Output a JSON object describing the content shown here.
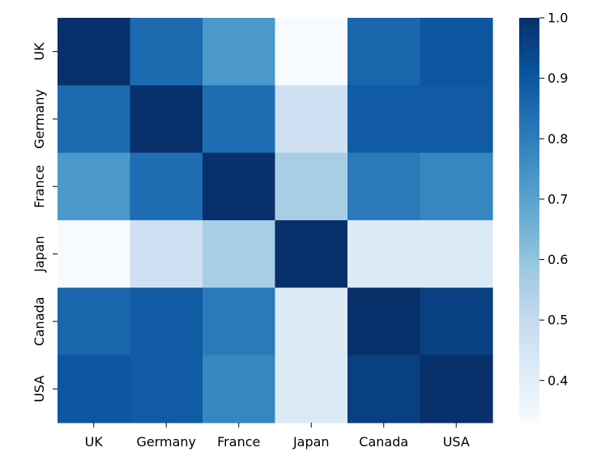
{
  "chart_data": {
    "type": "heatmap",
    "title": "",
    "xlabel": "",
    "ylabel": "",
    "x_categories": [
      "UK",
      "Germany",
      "France",
      "Japan",
      "Canada",
      "USA"
    ],
    "y_categories": [
      "UK",
      "Germany",
      "France",
      "Japan",
      "Canada",
      "USA"
    ],
    "matrix": [
      [
        1.0,
        0.85,
        0.73,
        0.33,
        0.86,
        0.9
      ],
      [
        0.85,
        1.0,
        0.84,
        0.47,
        0.89,
        0.89
      ],
      [
        0.73,
        0.84,
        1.0,
        0.56,
        0.81,
        0.78
      ],
      [
        0.33,
        0.47,
        0.56,
        1.0,
        0.42,
        0.42
      ],
      [
        0.86,
        0.89,
        0.81,
        0.42,
        1.0,
        0.96
      ],
      [
        0.9,
        0.89,
        0.78,
        0.42,
        0.96,
        1.0
      ]
    ],
    "colormap": "Blues",
    "colormap_stops": [
      "#f7fbff",
      "#deebf7",
      "#c6dbef",
      "#9ecae1",
      "#6baed6",
      "#4292c6",
      "#2171b5",
      "#08519c",
      "#08306b"
    ],
    "colorbar": {
      "vmin": 0.33,
      "vmax": 1.0,
      "ticks": [
        0.4,
        0.5,
        0.6,
        0.7,
        0.8,
        0.9,
        1.0
      ],
      "tick_labels": [
        "0.4",
        "0.5",
        "0.6",
        "0.7",
        "0.8",
        "0.9",
        "1.0"
      ]
    },
    "grid": false,
    "legend": "colorbar-right"
  }
}
